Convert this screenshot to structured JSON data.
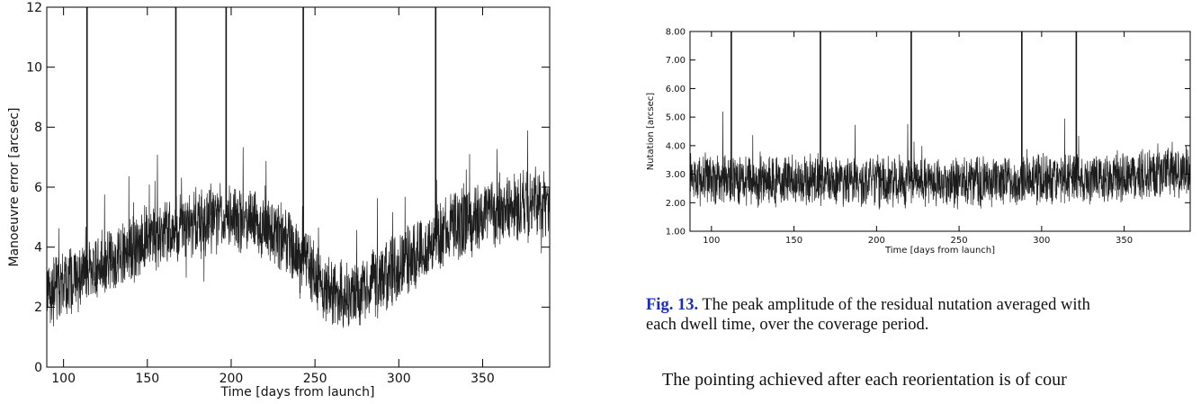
{
  "chart_data": [
    {
      "type": "line",
      "title": "",
      "xlabel": "Time [days from launch]",
      "ylabel": "Manoeuvre error [arcsec]",
      "xlim": [
        90,
        390
      ],
      "ylim": [
        0,
        12
      ],
      "xticks": [
        100,
        150,
        200,
        250,
        300,
        350
      ],
      "yticks": [
        0,
        2,
        4,
        6,
        8,
        10,
        12
      ],
      "xtick_labels": [
        "100",
        "150",
        "200",
        "250",
        "300",
        "350"
      ],
      "ytick_labels": [
        "0",
        "2",
        "4",
        "6",
        "8",
        "10",
        "12"
      ],
      "trend": {
        "x": [
          90,
          110,
          130,
          150,
          170,
          185,
          200,
          215,
          230,
          245,
          260,
          275,
          290,
          305,
          320,
          335,
          350,
          365,
          380,
          390
        ],
        "y": [
          2.4,
          3.0,
          3.5,
          4.2,
          4.6,
          4.9,
          5.0,
          4.9,
          4.4,
          3.4,
          2.5,
          2.4,
          2.9,
          3.6,
          4.2,
          4.7,
          5.0,
          5.2,
          5.6,
          5.3
        ]
      },
      "spikes": [
        {
          "x": 114,
          "y": 12
        },
        {
          "x": 167,
          "y": 12
        },
        {
          "x": 197,
          "y": 12
        },
        {
          "x": 243,
          "y": 12
        },
        {
          "x": 322,
          "y": 12
        }
      ],
      "grid": false,
      "legend": "none"
    },
    {
      "type": "line",
      "title": "",
      "xlabel": "Time [days from launch]",
      "ylabel": "Nutation [arcsec]",
      "xlim": [
        87,
        390
      ],
      "ylim": [
        1.0,
        8.0
      ],
      "xticks": [
        100,
        150,
        200,
        250,
        300,
        350
      ],
      "yticks": [
        1.0,
        2.0,
        3.0,
        4.0,
        5.0,
        6.0,
        7.0,
        8.0
      ],
      "xtick_labels": [
        "100",
        "150",
        "200",
        "250",
        "300",
        "350"
      ],
      "ytick_labels": [
        "1.00",
        "2.00",
        "3.00",
        "4.00",
        "5.00",
        "6.00",
        "7.00",
        "8.00"
      ],
      "trend": {
        "x": [
          87,
          150,
          250,
          350,
          390
        ],
        "y": [
          2.8,
          2.8,
          2.7,
          2.9,
          3.1
        ]
      },
      "spikes": [
        {
          "x": 112,
          "y": 8.0
        },
        {
          "x": 166,
          "y": 8.0
        },
        {
          "x": 221,
          "y": 8.0
        },
        {
          "x": 288,
          "y": 8.0
        },
        {
          "x": 321,
          "y": 8.0
        }
      ],
      "grid": false,
      "legend": "none"
    }
  ],
  "caption": {
    "fig_label": "Fig. 13.",
    "line1": " The peak amplitude of the residual nutation averaged with",
    "line2": "each dwell time, over the coverage period."
  },
  "body_text": "The pointing achieved after each reorientation is of cour"
}
